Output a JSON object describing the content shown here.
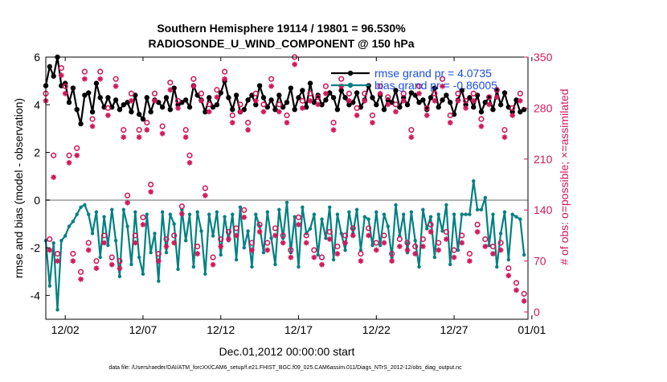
{
  "chart_data": {
    "type": "line",
    "title_line1": "Southern Hemisphere 19114 / 19801 = 96.530%",
    "title_line2": "RADIOSONDE_U_WIND_COMPONENT @ 150 hPa",
    "xlabel": "Dec.01,2012 00:00:00 start",
    "ylabel_left": "rmse and bias (model - observation)",
    "ylabel_right": "# of obs: o=possible; ×=assimilated",
    "footer": "data file: /Users/raeder/DAI/ATM_forcXX/CAM6_setup/f.e21.FHIST_BGC.f09_025.CAM6assim.011/Diags_NTrS_2012-12/obs_diag_output.nc",
    "xlim": [
      0.5,
      31.5
    ],
    "ylim_left": [
      -5,
      6
    ],
    "ylim_right": [
      -10,
      350
    ],
    "x_ticks": [
      {
        "x": 1.75,
        "label": "12/02"
      },
      {
        "x": 6.75,
        "label": "12/07"
      },
      {
        "x": 11.75,
        "label": "12/12"
      },
      {
        "x": 16.75,
        "label": "12/17"
      },
      {
        "x": 21.75,
        "label": "12/22"
      },
      {
        "x": 26.75,
        "label": "12/27"
      },
      {
        "x": 31.75,
        "label": "01/01"
      }
    ],
    "y_ticks_left": [
      -4,
      -2,
      0,
      2,
      4,
      6
    ],
    "y_ticks_right": [
      0,
      70,
      140,
      210,
      280,
      350
    ],
    "zero_line": 0,
    "legend": [
      {
        "label": "rmse grand pr = 4.0735",
        "color": "#000000"
      },
      {
        "label": "bias grand pr = -0.86005",
        "color": "#008080"
      }
    ],
    "colors": {
      "rmse": "#000000",
      "bias": "#008080",
      "obs": "#d0195c",
      "right_axis": "#d0195c",
      "zero_line": "#b0b0b0"
    },
    "series": [
      {
        "name": "rmse",
        "axis": "left",
        "x_start": 0.5,
        "x_step": 0.25,
        "values": [
          4.8,
          5.6,
          5.2,
          6.0,
          4.8,
          4.9,
          4.1,
          4.7,
          3.8,
          3.2,
          4.4,
          4.5,
          3.7,
          4.9,
          4.3,
          3.9,
          4.3,
          3.9,
          4.2,
          3.8,
          4.0,
          4.1,
          3.7,
          4.4,
          3.6,
          3.4,
          4.3,
          3.7,
          4.2,
          4.1,
          3.9,
          4.3,
          3.8,
          4.7,
          4.0,
          4.1,
          4.2,
          3.9,
          4.8,
          4.4,
          4.2,
          3.7,
          4.3,
          3.9,
          4.0,
          4.5,
          5.0,
          4.3,
          3.8,
          4.4,
          3.7,
          3.8,
          4.2,
          4.4,
          4.0,
          4.8,
          4.3,
          3.9,
          4.2,
          3.8,
          4.4,
          3.9,
          4.1,
          4.7,
          3.8,
          4.3,
          4.6,
          3.9,
          4.9,
          4.1,
          4.4,
          4.0,
          4.2,
          4.5,
          4.3,
          3.8,
          4.6,
          4.3,
          4.0,
          4.1,
          4.5,
          3.9,
          4.2,
          4.8,
          4.3,
          4.0,
          4.4,
          3.8,
          4.2,
          4.1,
          4.6,
          3.9,
          4.3,
          4.0,
          4.5,
          4.4,
          4.1,
          4.2,
          3.8,
          4.3,
          4.7,
          3.9,
          4.2,
          4.4,
          4.1,
          3.6,
          4.2,
          4.6,
          4.0,
          4.3,
          3.9,
          4.4,
          3.7,
          4.1,
          4.3,
          3.8,
          4.6,
          4.0,
          4.5,
          3.9,
          3.7,
          4.2,
          3.7,
          3.8
        ]
      },
      {
        "name": "bias",
        "axis": "left",
        "x_start": 0.5,
        "x_step": 0.25,
        "values": [
          -1.7,
          -3.6,
          -1.8,
          -4.6,
          -1.7,
          -1.5,
          -1.1,
          -0.9,
          -0.6,
          -0.3,
          -0.2,
          -0.6,
          -1.4,
          -0.5,
          -2.4,
          -0.7,
          -1.9,
          -0.4,
          -1.7,
          -3.2,
          -0.4,
          -1.1,
          -2.7,
          -0.5,
          -2.4,
          -3.1,
          -0.6,
          -2.2,
          -1.4,
          -3.4,
          -0.5,
          -2.2,
          -0.6,
          -1.0,
          -2.9,
          -0.4,
          -1.7,
          -0.6,
          -2.8,
          -0.5,
          -1.3,
          -3.1,
          -0.6,
          -1.5,
          -0.5,
          -2.3,
          -0.7,
          -1.7,
          -0.6,
          -2.5,
          -0.3,
          -2.0,
          -1.3,
          -2.8,
          -0.6,
          -1.1,
          -2.2,
          -0.5,
          -1.6,
          -2.7,
          -0.4,
          -1.6,
          -0.1,
          -2.2,
          -0.7,
          -2.8,
          -0.3,
          -1.4,
          -1.2,
          -0.6,
          -2.3,
          -0.8,
          -1.6,
          -0.3,
          -2.5,
          -0.6,
          -1.4,
          -2.1,
          -0.5,
          -1.4,
          -0.4,
          -2.1,
          -0.7,
          -0.8,
          -1.9,
          -0.5,
          -1.9,
          -0.6,
          -1.1,
          -2.4,
          -0.2,
          -1.5,
          -0.6,
          -2.2,
          -0.5,
          -1.7,
          -2.8,
          -0.4,
          -1.2,
          -0.7,
          -2.4,
          -0.6,
          -1.3,
          -0.2,
          -2.7,
          -0.6,
          -2.1,
          -0.6,
          -0.6,
          -0.6,
          0.8,
          -0.4,
          -0.4,
          0.1,
          -1.9,
          -0.6,
          -2.8,
          -1.4,
          -0.5,
          -2.5,
          -0.6,
          -0.7,
          -0.8,
          -2.3
        ]
      },
      {
        "name": "possible",
        "axis": "right",
        "marker": "circle",
        "x_start": 0.5,
        "x_step": 0.25,
        "values": [
          300,
          100,
          215,
          80,
          335,
          310,
          215,
          80,
          225,
          55,
          330,
          95,
          265,
          70,
          330,
          105,
          280,
          75,
          320,
          70,
          250,
          160,
          300,
          105,
          250,
          130,
          260,
          175,
          300,
          80,
          255,
          100,
          315,
          105,
          290,
          145,
          250,
          215,
          320,
          90,
          300,
          170,
          285,
          75,
          305,
          100,
          330,
          110,
          270,
          115,
          285,
          140,
          260,
          95,
          300,
          120,
          285,
          95,
          320,
          115,
          285,
          105,
          270,
          85,
          350,
          130,
          290,
          105,
          300,
          85,
          295,
          75,
          310,
          110,
          260,
          90,
          320,
          105,
          300,
          115,
          280,
          80,
          300,
          115,
          270,
          95,
          310,
          105,
          295,
          80,
          285,
          100,
          300,
          95,
          250,
          90,
          310,
          100,
          280,
          120,
          300,
          95,
          320,
          110,
          270,
          85,
          300,
          105,
          290,
          80,
          300,
          120,
          265,
          100,
          295,
          90,
          305,
          95,
          250,
          60,
          280,
          40,
          300,
          25
        ]
      },
      {
        "name": "assimilated",
        "axis": "right",
        "marker": "star",
        "x_start": 0.5,
        "x_step": 0.25,
        "values": [
          290,
          85,
          185,
          70,
          325,
          300,
          205,
          70,
          215,
          45,
          320,
          85,
          255,
          60,
          320,
          95,
          270,
          65,
          310,
          60,
          240,
          150,
          290,
          95,
          240,
          120,
          250,
          165,
          290,
          70,
          245,
          90,
          305,
          95,
          280,
          135,
          240,
          205,
          310,
          80,
          290,
          160,
          275,
          65,
          295,
          90,
          320,
          100,
          260,
          105,
          275,
          130,
          250,
          85,
          290,
          110,
          275,
          85,
          310,
          105,
          275,
          95,
          260,
          75,
          340,
          120,
          280,
          95,
          290,
          75,
          285,
          65,
          300,
          100,
          250,
          80,
          310,
          95,
          290,
          105,
          270,
          70,
          290,
          105,
          260,
          85,
          300,
          95,
          285,
          70,
          275,
          90,
          290,
          85,
          240,
          80,
          300,
          90,
          270,
          110,
          290,
          85,
          310,
          100,
          260,
          75,
          290,
          95,
          280,
          70,
          290,
          110,
          255,
          90,
          285,
          80,
          295,
          85,
          240,
          50,
          270,
          30,
          290,
          15
        ]
      }
    ]
  }
}
